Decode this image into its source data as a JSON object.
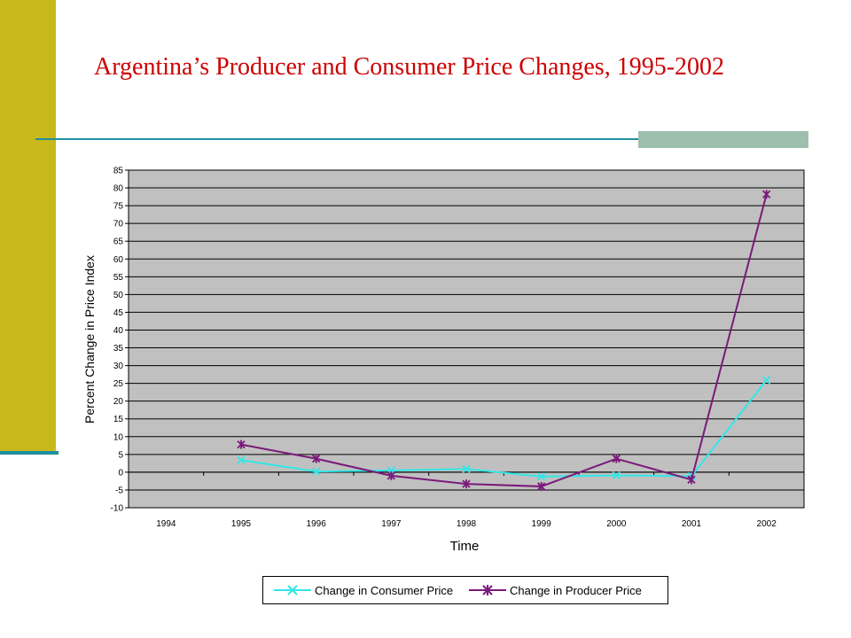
{
  "slide": {
    "title": "Argentina’s Producer and Consumer Price Changes, 1995-2002",
    "sidebar_color": "#c8b81c",
    "rule_color": "#1f8fa0",
    "accent_color": "#9fbfae",
    "title_color": "#cc0000"
  },
  "chart_data": {
    "type": "line",
    "title": "",
    "xlabel": "Time",
    "ylabel": "Percent Change in Price Index",
    "categories": [
      "1994",
      "1995",
      "1996",
      "1997",
      "1998",
      "1999",
      "2000",
      "2001",
      "2002"
    ],
    "ylim": [
      -10,
      85
    ],
    "ytick_step": 5,
    "grid": true,
    "plot_background": "#c0c0c0",
    "legend_position": "bottom",
    "series": [
      {
        "name": "Change in Consumer Price",
        "color": "#33e6e6",
        "marker": "x",
        "values": [
          null,
          3.4,
          0.2,
          0.5,
          0.9,
          -1.2,
          -0.9,
          -1.1,
          25.9
        ]
      },
      {
        "name": "Change in Producer Price",
        "color": "#7a1a7a",
        "marker": "asterisk",
        "values": [
          null,
          7.8,
          3.8,
          -1.0,
          -3.3,
          -4.0,
          3.8,
          -2.1,
          78.2
        ]
      }
    ]
  }
}
